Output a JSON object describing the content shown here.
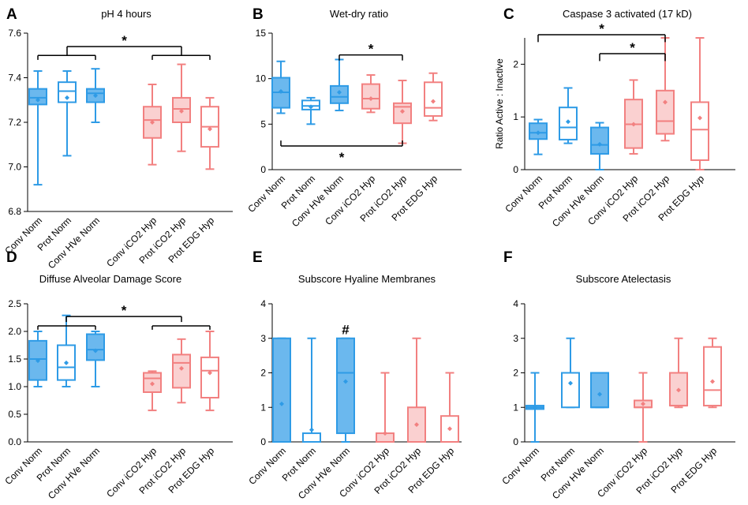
{
  "colors": {
    "blue": "#2e9be6",
    "blue_fill": "#6bb8ee",
    "pink": "#f28080",
    "pink_fill": "#fad0d0"
  },
  "chart_data": [
    {
      "id": "A",
      "type": "boxplot",
      "letter": "A",
      "title": "pH 4 hours",
      "ylabel": "",
      "ylim": [
        6.8,
        7.6
      ],
      "yticks": [
        "6.8",
        "7.0",
        "7.2",
        "7.4",
        "7.6"
      ],
      "ytick_values": [
        6.8,
        7.0,
        7.2,
        7.4,
        7.6
      ],
      "series": [
        {
          "name": "Conv Norm",
          "group": "norm",
          "filled": true,
          "min": 6.92,
          "q1": 7.28,
          "median": 7.31,
          "q3": 7.35,
          "max": 7.43,
          "mean": 7.3
        },
        {
          "name": "Prot Norm",
          "group": "norm",
          "filled": false,
          "min": 7.05,
          "q1": 7.29,
          "median": 7.34,
          "q3": 7.38,
          "max": 7.43,
          "mean": 7.31
        },
        {
          "name": "Conv HVe Norm",
          "group": "norm",
          "filled": true,
          "min": 7.2,
          "q1": 7.29,
          "median": 7.33,
          "q3": 7.35,
          "max": 7.44,
          "mean": 7.32
        },
        {
          "name": "Conv iCO2 Hyp",
          "group": "hyp",
          "filled": true,
          "min": 7.01,
          "q1": 7.13,
          "median": 7.21,
          "q3": 7.27,
          "max": 7.37,
          "mean": 7.2
        },
        {
          "name": "Prot iCO2 Hyp",
          "group": "hyp",
          "filled": true,
          "min": 7.07,
          "q1": 7.2,
          "median": 7.26,
          "q3": 7.31,
          "max": 7.46,
          "mean": 7.25
        },
        {
          "name": "Prot EDG Hyp",
          "group": "hyp",
          "filled": false,
          "min": 6.99,
          "q1": 7.09,
          "median": 7.18,
          "q3": 7.27,
          "max": 7.31,
          "mean": 7.17
        }
      ],
      "brackets": [
        {
          "type": "group",
          "from": 0,
          "to": 2,
          "y": 7.5,
          "tick": -0.02
        },
        {
          "type": "group",
          "from": 3,
          "to": 5,
          "y": 7.5,
          "tick": -0.02
        },
        {
          "type": "line",
          "from": 1,
          "to": 4,
          "y": 7.54,
          "tick": -0.04,
          "label": "*"
        }
      ]
    },
    {
      "id": "B",
      "type": "boxplot",
      "letter": "B",
      "title": "Wet-dry ratio",
      "ylabel": "",
      "ylim": [
        0,
        15
      ],
      "yticks": [
        "0",
        "5",
        "10",
        "15"
      ],
      "ytick_values": [
        0,
        5,
        10,
        15
      ],
      "series": [
        {
          "name": "Conv Norm",
          "group": "norm",
          "filled": true,
          "min": 6.2,
          "q1": 6.8,
          "median": 8.5,
          "q3": 10.1,
          "max": 11.9,
          "mean": 8.6
        },
        {
          "name": "Prot Norm",
          "group": "norm",
          "filled": false,
          "min": 5.0,
          "q1": 6.6,
          "median": 7.0,
          "q3": 7.6,
          "max": 7.9,
          "mean": 6.9
        },
        {
          "name": "Conv HVe Norm",
          "group": "norm",
          "filled": true,
          "min": 6.5,
          "q1": 7.3,
          "median": 8.0,
          "q3": 9.2,
          "max": 12.1,
          "mean": 8.5
        },
        {
          "name": "Conv iCO2 Hyp",
          "group": "hyp",
          "filled": true,
          "min": 6.3,
          "q1": 6.7,
          "median": 7.8,
          "q3": 9.4,
          "max": 10.4,
          "mean": 7.8
        },
        {
          "name": "Prot iCO2 Hyp",
          "group": "hyp",
          "filled": true,
          "min": 2.9,
          "q1": 5.1,
          "median": 6.9,
          "q3": 7.3,
          "max": 9.8,
          "mean": 6.4
        },
        {
          "name": "Prot EDG Hyp",
          "group": "hyp",
          "filled": false,
          "min": 5.4,
          "q1": 5.9,
          "median": 6.8,
          "q3": 9.6,
          "max": 10.6,
          "mean": 7.5
        }
      ],
      "brackets": [
        {
          "type": "line",
          "from": 2,
          "to": 4,
          "y": 12.6,
          "tick": -0.6,
          "label": "*"
        },
        {
          "type": "line",
          "from": 0,
          "to": 4,
          "y": 2.6,
          "tick": 0.6,
          "label": "*",
          "label_below": true
        }
      ]
    },
    {
      "id": "C",
      "type": "boxplot",
      "letter": "C",
      "title": "Caspase 3 activated (17 kD)",
      "ylabel": "Ratio Active : Inactive",
      "ylim": [
        0,
        2.5
      ],
      "yticks": [
        "0",
        "1",
        "2"
      ],
      "ytick_values": [
        0,
        1,
        2
      ],
      "series": [
        {
          "name": "Conv Norm",
          "group": "norm",
          "filled": true,
          "min": 0.29,
          "q1": 0.58,
          "median": 0.7,
          "q3": 0.88,
          "max": 0.95,
          "mean": 0.7
        },
        {
          "name": "Prot Norm",
          "group": "norm",
          "filled": false,
          "min": 0.5,
          "q1": 0.57,
          "median": 0.8,
          "q3": 1.18,
          "max": 1.55,
          "mean": 0.91
        },
        {
          "name": "Conv HVe Norm",
          "group": "norm",
          "filled": true,
          "min": 0.0,
          "q1": 0.3,
          "median": 0.47,
          "q3": 0.8,
          "max": 0.89,
          "mean": 0.48
        },
        {
          "name": "Conv iCO2 Hyp",
          "group": "hyp",
          "filled": true,
          "min": 0.3,
          "q1": 0.41,
          "median": 0.86,
          "q3": 1.33,
          "max": 1.7,
          "mean": 0.86
        },
        {
          "name": "Prot iCO2 Hyp",
          "group": "hyp",
          "filled": true,
          "min": 0.55,
          "q1": 0.68,
          "median": 0.92,
          "q3": 1.5,
          "max": 2.5,
          "mean": 1.28
        },
        {
          "name": "Prot EDG Hyp",
          "group": "hyp",
          "filled": false,
          "min": 0.0,
          "q1": 0.18,
          "median": 0.76,
          "q3": 1.28,
          "max": 2.5,
          "mean": 0.98
        }
      ],
      "brackets": [
        {
          "type": "line",
          "from": 0,
          "to": 4,
          "y": 2.56,
          "tick": -0.14,
          "label": "*"
        },
        {
          "type": "line",
          "from": 2,
          "to": 4,
          "y": 2.2,
          "tick": -0.14,
          "label": "*"
        }
      ]
    },
    {
      "id": "D",
      "type": "boxplot",
      "letter": "D",
      "title": "Diffuse Alveolar Damage Score",
      "ylabel": "",
      "ylim": [
        0,
        2.5
      ],
      "yticks": [
        "0.0",
        "0.5",
        "1.0",
        "1.5",
        "2.0",
        "2.5"
      ],
      "ytick_values": [
        0,
        0.5,
        1.0,
        1.5,
        2.0,
        2.5
      ],
      "series": [
        {
          "name": "Conv Norm",
          "group": "norm",
          "filled": true,
          "min": 1.0,
          "q1": 1.12,
          "median": 1.5,
          "q3": 1.83,
          "max": 2.0,
          "mean": 1.47
        },
        {
          "name": "Prot Norm",
          "group": "norm",
          "filled": false,
          "min": 1.0,
          "q1": 1.12,
          "median": 1.35,
          "q3": 1.75,
          "max": 2.29,
          "mean": 1.43
        },
        {
          "name": "Conv HVe Norm",
          "group": "norm",
          "filled": true,
          "min": 1.0,
          "q1": 1.48,
          "median": 1.67,
          "q3": 1.95,
          "max": 2.0,
          "mean": 1.65
        },
        {
          "name": "Conv iCO2 Hyp",
          "group": "hyp",
          "filled": true,
          "min": 0.57,
          "q1": 0.9,
          "median": 1.15,
          "q3": 1.25,
          "max": 1.28,
          "mean": 1.05
        },
        {
          "name": "Prot iCO2 Hyp",
          "group": "hyp",
          "filled": true,
          "min": 0.71,
          "q1": 0.98,
          "median": 1.43,
          "q3": 1.58,
          "max": 1.86,
          "mean": 1.33
        },
        {
          "name": "Prot EDG Hyp",
          "group": "hyp",
          "filled": false,
          "min": 0.57,
          "q1": 0.8,
          "median": 1.29,
          "q3": 1.53,
          "max": 2.0,
          "mean": 1.25
        }
      ],
      "brackets": [
        {
          "type": "group",
          "from": 0,
          "to": 2,
          "y": 2.1,
          "tick": -0.07
        },
        {
          "type": "group",
          "from": 3,
          "to": 5,
          "y": 2.1,
          "tick": -0.07
        },
        {
          "type": "line",
          "from": 1,
          "to": 4,
          "y": 2.27,
          "tick": -0.1,
          "label": "*"
        }
      ]
    },
    {
      "id": "E",
      "type": "boxplot",
      "letter": "E",
      "title": "Subscore Hyaline Membranes",
      "ylabel": "",
      "ylim": [
        0,
        4
      ],
      "yticks": [
        "0",
        "1",
        "2",
        "3",
        "4"
      ],
      "ytick_values": [
        0,
        1,
        2,
        3,
        4
      ],
      "series": [
        {
          "name": "Conv Norm",
          "group": "norm",
          "filled": true,
          "min": 0.0,
          "q1": 0.0,
          "median": 0.0,
          "q3": 3.0,
          "max": 3.0,
          "mean": 1.1
        },
        {
          "name": "Prot Norm",
          "group": "norm",
          "filled": false,
          "min": 0.0,
          "q1": 0.0,
          "median": 0.0,
          "q3": 0.25,
          "max": 3.0,
          "mean": 0.35
        },
        {
          "name": "Conv HVe Norm",
          "group": "norm",
          "filled": true,
          "min": 0.0,
          "q1": 0.25,
          "median": 2.0,
          "q3": 3.0,
          "max": 3.0,
          "mean": 1.75
        },
        {
          "name": "Conv iCO2 Hyp",
          "group": "hyp",
          "filled": true,
          "min": 0.0,
          "q1": 0.0,
          "median": 0.0,
          "q3": 0.25,
          "max": 2.0,
          "mean": 0.25
        },
        {
          "name": "Prot iCO2 Hyp",
          "group": "hyp",
          "filled": true,
          "min": 0.0,
          "q1": 0.0,
          "median": 0.0,
          "q3": 1.0,
          "max": 3.0,
          "mean": 0.5
        },
        {
          "name": "Prot EDG Hyp",
          "group": "hyp",
          "filled": false,
          "min": 0.0,
          "q1": 0.0,
          "median": 0.0,
          "q3": 0.75,
          "max": 2.0,
          "mean": 0.38
        }
      ],
      "annotations": [
        {
          "series": 2,
          "y": 3.12,
          "text": "#"
        }
      ],
      "brackets": []
    },
    {
      "id": "F",
      "type": "boxplot",
      "letter": "F",
      "title": "Subscore Atelectasis",
      "ylabel": "",
      "ylim": [
        0,
        4
      ],
      "yticks": [
        "0",
        "1",
        "2",
        "3",
        "4"
      ],
      "ytick_values": [
        0,
        1,
        2,
        3,
        4
      ],
      "series": [
        {
          "name": "Conv Norm",
          "group": "norm",
          "filled": true,
          "min": 0.0,
          "q1": 0.95,
          "median": 1.0,
          "q3": 1.05,
          "max": 2.0,
          "mean": 1.0
        },
        {
          "name": "Prot Norm",
          "group": "norm",
          "filled": false,
          "min": 1.0,
          "q1": 1.0,
          "median": 2.0,
          "q3": 2.0,
          "max": 3.0,
          "mean": 1.7
        },
        {
          "name": "Conv HVe Norm",
          "group": "norm",
          "filled": true,
          "min": 1.0,
          "q1": 1.0,
          "median": 1.0,
          "q3": 2.0,
          "max": 2.0,
          "mean": 1.38
        },
        {
          "name": "Conv iCO2 Hyp",
          "group": "hyp",
          "filled": true,
          "min": 0.0,
          "q1": 1.0,
          "median": 1.0,
          "q3": 1.2,
          "max": 2.0,
          "mean": 1.1
        },
        {
          "name": "Prot iCO2 Hyp",
          "group": "hyp",
          "filled": true,
          "min": 1.0,
          "q1": 1.05,
          "median": 1.05,
          "q3": 2.0,
          "max": 3.0,
          "mean": 1.5
        },
        {
          "name": "Prot EDG Hyp",
          "group": "hyp",
          "filled": false,
          "min": 1.0,
          "q1": 1.05,
          "median": 1.5,
          "q3": 2.75,
          "max": 3.0,
          "mean": 1.75
        }
      ],
      "brackets": []
    }
  ]
}
